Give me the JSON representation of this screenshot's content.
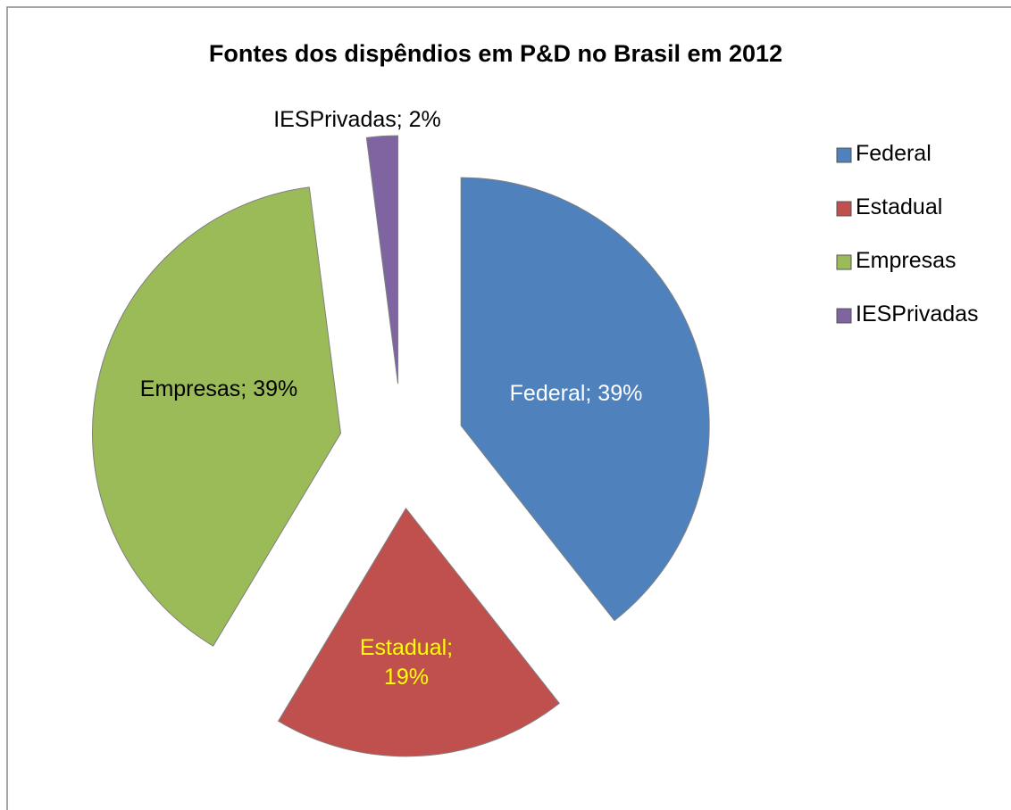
{
  "chart_data": {
    "type": "pie",
    "title": "Fontes dos dispêndios em P&D no Brasil em 2012",
    "categories": [
      "Federal",
      "Estadual",
      "Empresas",
      "IESPrivadas"
    ],
    "values": [
      39,
      19,
      39,
      2
    ],
    "value_labels": [
      "Federal; 39%",
      "Estadual; 19%",
      "Empresas; 39%",
      "IESPrivadas; 2%"
    ],
    "colors": [
      "#4f81bd",
      "#c0504d",
      "#9bbb59",
      "#8064a2"
    ],
    "label_colors": [
      "#ffffff",
      "#ffff00",
      "#000000",
      "#000000"
    ],
    "legend": "right"
  }
}
